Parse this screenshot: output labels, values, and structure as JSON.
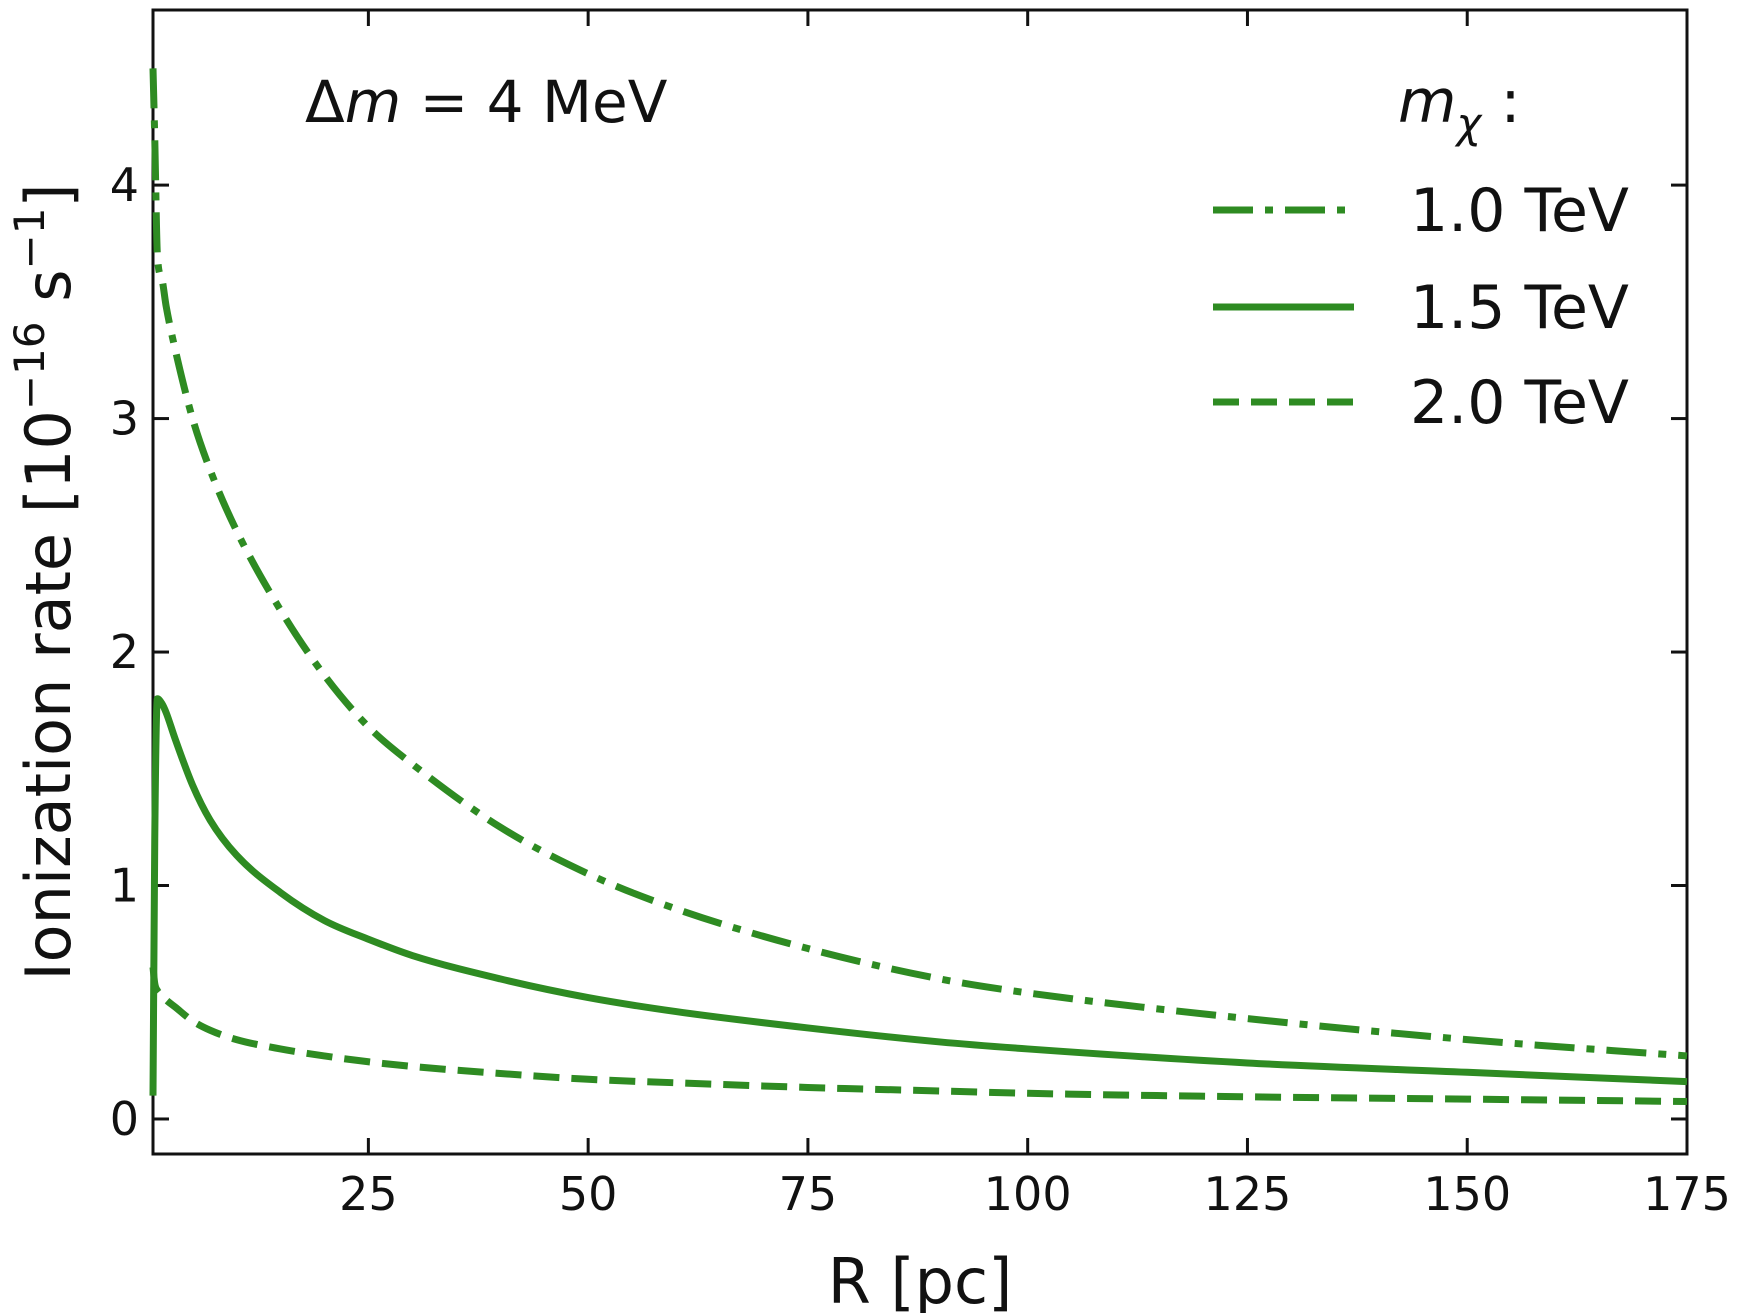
{
  "chart_data": {
    "type": "line",
    "xlabel": "R [pc]",
    "ylabel": "Ionization rate [10$^{-16}$ s$^{-1}$]",
    "ylabel_parts": {
      "base": "Ionization rate [10",
      "exp1": "−16",
      "mid": " s",
      "exp2": "−1",
      "end": "]"
    },
    "xlim": [
      0.5,
      175
    ],
    "ylim": [
      -0.15,
      4.75
    ],
    "xticks": [
      25,
      50,
      75,
      100,
      125,
      150,
      175
    ],
    "yticks": [
      0,
      1,
      2,
      3,
      4
    ],
    "annotation": {
      "prefix": "Δ",
      "var": "m",
      "suffix": " = 4 MeV"
    },
    "legend": {
      "title_var": "m",
      "title_sub": "χ",
      "title_suffix": " :",
      "position": "top-right"
    },
    "color": "#2e8b22",
    "series": [
      {
        "name": "1.0 TeV",
        "style": "dashdot",
        "x": [
          0.5,
          0.7,
          1,
          1.5,
          2,
          3,
          5,
          7,
          10,
          15,
          20,
          25,
          30,
          40,
          50,
          60,
          75,
          90,
          100,
          125,
          150,
          175
        ],
        "y": [
          4.5,
          4.2,
          3.7,
          3.6,
          3.48,
          3.3,
          3.0,
          2.78,
          2.52,
          2.18,
          1.9,
          1.68,
          1.52,
          1.25,
          1.05,
          0.9,
          0.73,
          0.6,
          0.54,
          0.43,
          0.34,
          0.27
        ]
      },
      {
        "name": "1.5 TeV",
        "style": "solid",
        "x": [
          0.5,
          0.7,
          1,
          1.5,
          2,
          3,
          5,
          7,
          10,
          15,
          20,
          25,
          30,
          40,
          50,
          60,
          75,
          90,
          100,
          125,
          150,
          175
        ],
        "y": [
          0.1,
          1.2,
          1.8,
          1.78,
          1.74,
          1.63,
          1.43,
          1.28,
          1.13,
          0.97,
          0.85,
          0.77,
          0.7,
          0.6,
          0.52,
          0.46,
          0.39,
          0.33,
          0.3,
          0.24,
          0.2,
          0.16
        ]
      },
      {
        "name": "2.0 TeV",
        "style": "dashed",
        "x": [
          0.5,
          0.7,
          1,
          1.5,
          2,
          3,
          5,
          7,
          10,
          15,
          20,
          25,
          30,
          40,
          50,
          60,
          75,
          90,
          100,
          125,
          150,
          175
        ],
        "y": [
          0.65,
          0.58,
          0.55,
          0.53,
          0.51,
          0.48,
          0.42,
          0.38,
          0.34,
          0.3,
          0.27,
          0.245,
          0.225,
          0.195,
          0.17,
          0.155,
          0.135,
          0.12,
          0.11,
          0.095,
          0.085,
          0.075
        ]
      }
    ]
  }
}
